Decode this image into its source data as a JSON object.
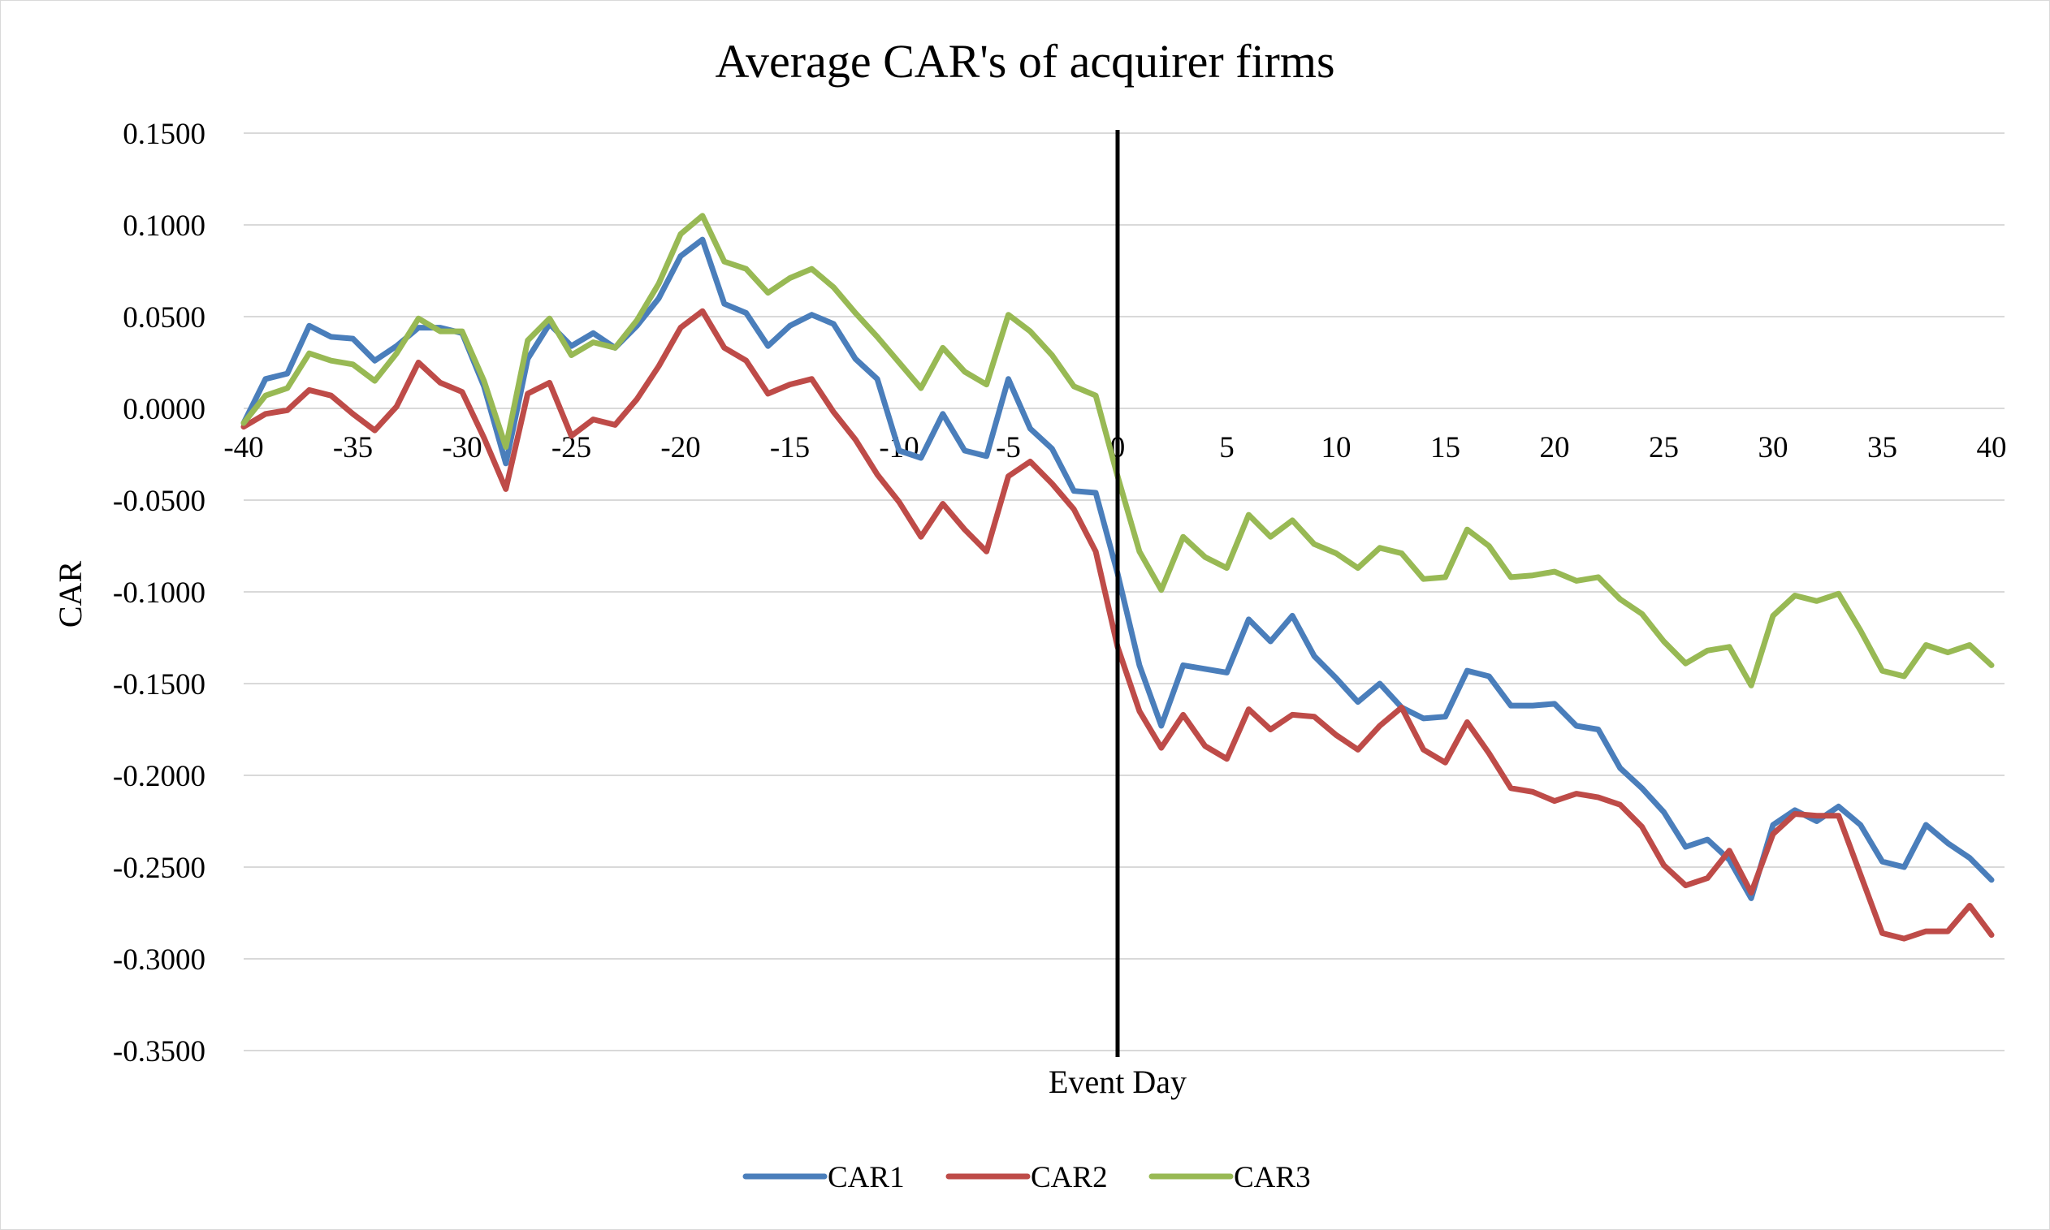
{
  "chart_data": {
    "type": "line",
    "title": "Average CAR's of acquirer firms",
    "xlabel": "Event Day",
    "ylabel": "CAR",
    "xlim": [
      -40,
      40
    ],
    "ylim": [
      -0.35,
      0.15
    ],
    "x_ticks": [
      -40,
      -35,
      -30,
      -25,
      -20,
      -15,
      -10,
      -5,
      0,
      5,
      10,
      15,
      20,
      25,
      30,
      35,
      40
    ],
    "y_ticks": [
      0.15,
      0.1,
      0.05,
      0.0,
      -0.05,
      -0.1,
      -0.15,
      -0.2,
      -0.25,
      -0.3,
      -0.35
    ],
    "y_tick_labels": [
      "0.1500",
      "0.1000",
      "0.0500",
      "0.0000",
      "-0.0500",
      "-0.1000",
      "-0.1500",
      "-0.2000",
      "-0.2500",
      "-0.3000",
      "-0.3500"
    ],
    "grid": true,
    "legend_position": "bottom",
    "event_line_x": 0,
    "series": [
      {
        "name": "CAR1",
        "color": "#4a7ebb",
        "values": [
          -0.008,
          0.016,
          0.019,
          0.045,
          0.039,
          0.038,
          0.026,
          0.034,
          0.044,
          0.044,
          0.041,
          0.012,
          -0.03,
          0.027,
          0.046,
          0.034,
          0.041,
          0.033,
          0.045,
          0.06,
          0.083,
          0.092,
          0.057,
          0.052,
          0.034,
          0.045,
          0.051,
          0.046,
          0.027,
          0.016,
          -0.023,
          -0.027,
          -0.003,
          -0.023,
          -0.026,
          0.016,
          -0.011,
          -0.022,
          -0.045,
          -0.046,
          -0.09,
          -0.14,
          -0.173,
          -0.14,
          -0.142,
          -0.144,
          -0.115,
          -0.127,
          -0.113,
          -0.135,
          -0.147,
          -0.16,
          -0.15,
          -0.163,
          -0.169,
          -0.168,
          -0.143,
          -0.146,
          -0.162,
          -0.162,
          -0.161,
          -0.173,
          -0.175,
          -0.196,
          -0.207,
          -0.22,
          -0.239,
          -0.235,
          -0.246,
          -0.267,
          -0.227,
          -0.219,
          -0.225,
          -0.217,
          -0.227,
          -0.247,
          -0.25,
          -0.227,
          -0.237,
          -0.245,
          -0.257
        ]
      },
      {
        "name": "CAR2",
        "color": "#be4b48",
        "values": [
          -0.01,
          -0.003,
          -0.001,
          0.01,
          0.007,
          -0.003,
          -0.012,
          0.001,
          0.025,
          0.014,
          0.009,
          -0.016,
          -0.044,
          0.008,
          0.014,
          -0.015,
          -0.006,
          -0.009,
          0.005,
          0.023,
          0.044,
          0.053,
          0.033,
          0.026,
          0.008,
          0.013,
          0.016,
          -0.002,
          -0.017,
          -0.036,
          -0.051,
          -0.07,
          -0.052,
          -0.066,
          -0.078,
          -0.037,
          -0.029,
          -0.041,
          -0.055,
          -0.078,
          -0.13,
          -0.165,
          -0.185,
          -0.167,
          -0.184,
          -0.191,
          -0.164,
          -0.175,
          -0.167,
          -0.168,
          -0.178,
          -0.186,
          -0.173,
          -0.163,
          -0.186,
          -0.193,
          -0.171,
          -0.188,
          -0.207,
          -0.209,
          -0.214,
          -0.21,
          -0.212,
          -0.216,
          -0.228,
          -0.249,
          -0.26,
          -0.256,
          -0.241,
          -0.264,
          -0.232,
          -0.221,
          -0.222,
          -0.222,
          -0.254,
          -0.286,
          -0.289,
          -0.285,
          -0.285,
          -0.271,
          -0.287
        ]
      },
      {
        "name": "CAR3",
        "color": "#98b954",
        "values": [
          -0.008,
          0.007,
          0.011,
          0.03,
          0.026,
          0.024,
          0.015,
          0.03,
          0.049,
          0.042,
          0.042,
          0.015,
          -0.021,
          0.037,
          0.049,
          0.029,
          0.036,
          0.033,
          0.048,
          0.068,
          0.095,
          0.105,
          0.08,
          0.076,
          0.063,
          0.071,
          0.076,
          0.066,
          0.052,
          0.039,
          0.025,
          0.011,
          0.033,
          0.02,
          0.013,
          0.051,
          0.042,
          0.029,
          0.012,
          0.007,
          -0.037,
          -0.078,
          -0.099,
          -0.07,
          -0.081,
          -0.087,
          -0.058,
          -0.07,
          -0.061,
          -0.074,
          -0.079,
          -0.087,
          -0.076,
          -0.079,
          -0.093,
          -0.092,
          -0.066,
          -0.075,
          -0.092,
          -0.091,
          -0.089,
          -0.094,
          -0.092,
          -0.104,
          -0.112,
          -0.127,
          -0.139,
          -0.132,
          -0.13,
          -0.151,
          -0.113,
          -0.102,
          -0.105,
          -0.101,
          -0.121,
          -0.143,
          -0.146,
          -0.129,
          -0.133,
          -0.129,
          -0.14
        ]
      }
    ]
  }
}
